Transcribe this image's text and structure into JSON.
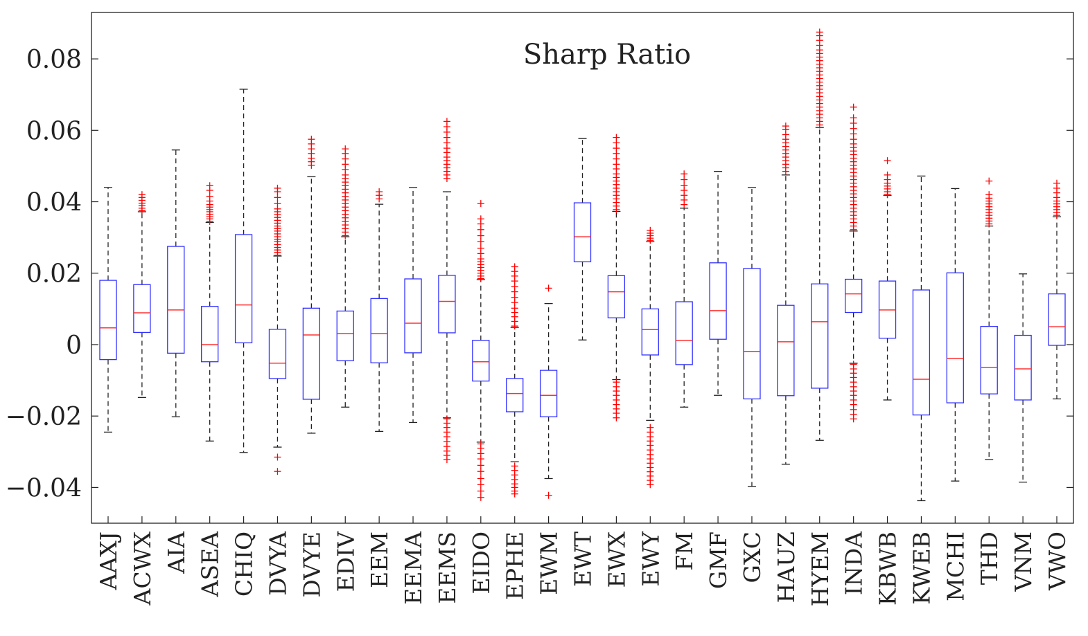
{
  "chart_data": {
    "type": "box",
    "title": "Sharp Ratio",
    "xlabel": "",
    "ylabel": "",
    "ylim": [
      -0.05,
      0.093
    ],
    "yticks": [
      -0.04,
      -0.02,
      0,
      0.02,
      0.04,
      0.06,
      0.08
    ],
    "ytick_labels": [
      "−0.04",
      "−0.02",
      "0",
      "0.02",
      "0.04",
      "0.06",
      "0.08"
    ],
    "colors": {
      "box": "#3030ff",
      "median": "#ff3030",
      "whisker": "#222222",
      "outlier": "#ff0000"
    },
    "categories": [
      "AAXJ",
      "ACWX",
      "AIA",
      "ASEA",
      "CHIQ",
      "DVYA",
      "DVYE",
      "EDIV",
      "EEM",
      "EEMA",
      "EEMS",
      "EIDO",
      "EPHE",
      "EWM",
      "EWT",
      "EWX",
      "EWY",
      "FM",
      "GMF",
      "GXC",
      "HAUZ",
      "HYEM",
      "INDA",
      "KBWB",
      "KWEB",
      "MCHI",
      "THD",
      "VNM",
      "VWO"
    ],
    "boxes": [
      {
        "label": "AAXJ",
        "whisker_low": -0.0245,
        "q1": -0.0042,
        "median": 0.0047,
        "q3": 0.018,
        "whisker_high": 0.044,
        "outliers": []
      },
      {
        "label": "ACWX",
        "whisker_low": -0.0148,
        "q1": 0.0034,
        "median": 0.0089,
        "q3": 0.0168,
        "whisker_high": 0.0372,
        "outliers": [
          0.0375,
          0.0382,
          0.0389,
          0.0396,
          0.0404,
          0.0412,
          0.042
        ]
      },
      {
        "label": "AIA",
        "whisker_low": -0.0202,
        "q1": -0.0024,
        "median": 0.0097,
        "q3": 0.0275,
        "whisker_high": 0.0545,
        "outliers": []
      },
      {
        "label": "ASEA",
        "whisker_low": -0.027,
        "q1": -0.0048,
        "median": 0.0,
        "q3": 0.0107,
        "whisker_high": 0.0342,
        "outliers": [
          0.0345,
          0.0352,
          0.0358,
          0.0365,
          0.0372,
          0.0378,
          0.0385,
          0.0392,
          0.0402,
          0.0415,
          0.0432,
          0.0445
        ]
      },
      {
        "label": "CHIQ",
        "whisker_low": -0.0302,
        "q1": 0.0005,
        "median": 0.0111,
        "q3": 0.0308,
        "whisker_high": 0.0715,
        "outliers": []
      },
      {
        "label": "DVYA",
        "whisker_low": -0.0287,
        "q1": -0.0095,
        "median": -0.0052,
        "q3": 0.0043,
        "whisker_high": 0.0248,
        "outliers": [
          -0.0355,
          -0.0315,
          0.025,
          0.0258,
          0.0265,
          0.0272,
          0.028,
          0.0288,
          0.0295,
          0.0302,
          0.031,
          0.0318,
          0.0325,
          0.0332,
          0.034,
          0.0348,
          0.0356,
          0.0364,
          0.0372,
          0.038,
          0.0395,
          0.0412,
          0.0428,
          0.0438
        ]
      },
      {
        "label": "DVYE",
        "whisker_low": -0.0248,
        "q1": -0.0153,
        "median": 0.0027,
        "q3": 0.0102,
        "whisker_high": 0.047,
        "outliers": [
          0.0502,
          0.0512,
          0.0522,
          0.0535,
          0.0548,
          0.0562,
          0.0575
        ]
      },
      {
        "label": "EDIV",
        "whisker_low": -0.0175,
        "q1": -0.0045,
        "median": 0.0031,
        "q3": 0.0094,
        "whisker_high": 0.0302,
        "outliers": [
          0.0305,
          0.0315,
          0.0325,
          0.0335,
          0.0345,
          0.0355,
          0.0365,
          0.0375,
          0.0385,
          0.0395,
          0.0405,
          0.0415,
          0.0425,
          0.0435,
          0.0445,
          0.0455,
          0.0465,
          0.0475,
          0.049,
          0.0505,
          0.052,
          0.0535,
          0.0548
        ]
      },
      {
        "label": "EEM",
        "whisker_low": -0.0243,
        "q1": -0.0051,
        "median": 0.0031,
        "q3": 0.0129,
        "whisker_high": 0.0393,
        "outliers": [
          0.0408,
          0.0418,
          0.0428
        ]
      },
      {
        "label": "EEMA",
        "whisker_low": -0.0218,
        "q1": -0.0023,
        "median": 0.006,
        "q3": 0.0184,
        "whisker_high": 0.044,
        "outliers": []
      },
      {
        "label": "EEMS",
        "whisker_low": -0.0205,
        "q1": 0.0033,
        "median": 0.0121,
        "q3": 0.0194,
        "whisker_high": 0.0428,
        "outliers": [
          -0.0322,
          -0.031,
          -0.0298,
          -0.0285,
          -0.0272,
          -0.0258,
          -0.0245,
          -0.0232,
          -0.022,
          -0.0208,
          0.0465,
          0.0475,
          0.0485,
          0.0495,
          0.0505,
          0.0515,
          0.0525,
          0.0538,
          0.055,
          0.0565,
          0.058,
          0.0595,
          0.061,
          0.0625
        ]
      },
      {
        "label": "EIDO",
        "whisker_low": -0.0273,
        "q1": -0.0102,
        "median": -0.0048,
        "q3": 0.0012,
        "whisker_high": 0.0182,
        "outliers": [
          -0.0428,
          -0.041,
          -0.0392,
          -0.0375,
          -0.0355,
          -0.0338,
          -0.032,
          -0.0305,
          -0.029,
          -0.0278,
          0.0185,
          0.0192,
          0.02,
          0.0208,
          0.0216,
          0.0224,
          0.0232,
          0.024,
          0.0255,
          0.027,
          0.0288,
          0.0305,
          0.0322,
          0.0338,
          0.0352,
          0.0395
        ]
      },
      {
        "label": "EPHE",
        "whisker_low": -0.0328,
        "q1": -0.0188,
        "median": -0.0137,
        "q3": -0.0095,
        "whisker_high": 0.0048,
        "outliers": [
          -0.0418,
          -0.041,
          -0.04,
          -0.039,
          -0.0378,
          -0.0365,
          -0.0352,
          -0.034,
          0.0052,
          0.0065,
          0.0078,
          0.009,
          0.0102,
          0.0118,
          0.0132,
          0.0148,
          0.0162,
          0.0178,
          0.0192,
          0.0205,
          0.0218
        ]
      },
      {
        "label": "EWM",
        "whisker_low": -0.0375,
        "q1": -0.0202,
        "median": -0.0142,
        "q3": -0.0072,
        "whisker_high": 0.0115,
        "outliers": [
          -0.0422,
          0.0158
        ]
      },
      {
        "label": "EWT",
        "whisker_low": 0.0013,
        "q1": 0.0232,
        "median": 0.0302,
        "q3": 0.0397,
        "whisker_high": 0.0577,
        "outliers": []
      },
      {
        "label": "EWX",
        "whisker_low": -0.0098,
        "q1": 0.0075,
        "median": 0.0148,
        "q3": 0.0193,
        "whisker_high": 0.0373,
        "outliers": [
          -0.0205,
          -0.0192,
          -0.018,
          -0.0168,
          -0.0155,
          -0.0142,
          -0.013,
          -0.0118,
          -0.0105,
          0.0378,
          0.0388,
          0.0398,
          0.0408,
          0.0418,
          0.0428,
          0.0438,
          0.0448,
          0.0458,
          0.0468,
          0.0478,
          0.0492,
          0.0505,
          0.052,
          0.0535,
          0.055,
          0.0565,
          0.058
        ]
      },
      {
        "label": "EWY",
        "whisker_low": -0.0212,
        "q1": -0.0029,
        "median": 0.0042,
        "q3": 0.01,
        "whisker_high": 0.0288,
        "outliers": [
          -0.0392,
          -0.038,
          -0.0368,
          -0.0356,
          -0.0344,
          -0.0332,
          -0.032,
          -0.0308,
          -0.0295,
          -0.0282,
          -0.027,
          -0.0258,
          -0.0245,
          -0.0232,
          0.0292,
          0.0298,
          0.0305,
          0.0312,
          0.032
        ]
      },
      {
        "label": "FM",
        "whisker_low": -0.0175,
        "q1": -0.0056,
        "median": 0.0012,
        "q3": 0.012,
        "whisker_high": 0.0382,
        "outliers": [
          0.0392,
          0.0405,
          0.0418,
          0.0432,
          0.0445,
          0.0462,
          0.0478
        ]
      },
      {
        "label": "GMF",
        "whisker_low": -0.0142,
        "q1": 0.0015,
        "median": 0.0095,
        "q3": 0.0229,
        "whisker_high": 0.0485,
        "outliers": []
      },
      {
        "label": "GXC",
        "whisker_low": -0.0397,
        "q1": -0.0152,
        "median": -0.0019,
        "q3": 0.0213,
        "whisker_high": 0.044,
        "outliers": []
      },
      {
        "label": "HAUZ",
        "whisker_low": -0.0335,
        "q1": -0.0143,
        "median": 0.0008,
        "q3": 0.011,
        "whisker_high": 0.0475,
        "outliers": [
          0.0485,
          0.0495,
          0.0505,
          0.0515,
          0.0525,
          0.0535,
          0.0545,
          0.0555,
          0.0565,
          0.0575,
          0.0588,
          0.0602,
          0.0612
        ]
      },
      {
        "label": "HYEM",
        "whisker_low": -0.0268,
        "q1": -0.0122,
        "median": 0.0064,
        "q3": 0.017,
        "whisker_high": 0.0608,
        "outliers": [
          0.0615,
          0.0625,
          0.0635,
          0.0645,
          0.0655,
          0.0665,
          0.0675,
          0.0685,
          0.0695,
          0.0705,
          0.0715,
          0.0725,
          0.0735,
          0.0745,
          0.0755,
          0.0765,
          0.0775,
          0.0785,
          0.0795,
          0.0805,
          0.0815,
          0.0825,
          0.0838,
          0.0852,
          0.0865,
          0.0875
        ]
      },
      {
        "label": "INDA",
        "whisker_low": -0.0052,
        "q1": 0.009,
        "median": 0.0142,
        "q3": 0.0183,
        "whisker_high": 0.0318,
        "outliers": [
          -0.0208,
          -0.0195,
          -0.0182,
          -0.0168,
          -0.0155,
          -0.0142,
          -0.013,
          -0.0118,
          -0.0105,
          -0.0092,
          -0.008,
          -0.0068,
          -0.0055,
          0.0322,
          0.0332,
          0.0342,
          0.0352,
          0.0362,
          0.0372,
          0.0382,
          0.0392,
          0.0402,
          0.0412,
          0.0422,
          0.0432,
          0.0442,
          0.0452,
          0.0462,
          0.0472,
          0.0482,
          0.0492,
          0.0502,
          0.0512,
          0.0522,
          0.0532,
          0.0542,
          0.0552,
          0.0562,
          0.0575,
          0.059,
          0.0605,
          0.062,
          0.0635,
          0.0665
        ]
      },
      {
        "label": "KBWB",
        "whisker_low": -0.0155,
        "q1": 0.0018,
        "median": 0.0097,
        "q3": 0.0178,
        "whisker_high": 0.0418,
        "outliers": [
          0.042,
          0.0428,
          0.0436,
          0.0444,
          0.0452,
          0.0462,
          0.0475,
          0.0515
        ]
      },
      {
        "label": "KWEB",
        "whisker_low": -0.0437,
        "q1": -0.0197,
        "median": -0.0097,
        "q3": 0.0153,
        "whisker_high": 0.0472,
        "outliers": []
      },
      {
        "label": "MCHI",
        "whisker_low": -0.0382,
        "q1": -0.0163,
        "median": -0.0039,
        "q3": 0.0201,
        "whisker_high": 0.0437,
        "outliers": []
      },
      {
        "label": "THD",
        "whisker_low": -0.0322,
        "q1": -0.0138,
        "median": -0.0064,
        "q3": 0.0051,
        "whisker_high": 0.0332,
        "outliers": [
          0.0338,
          0.0346,
          0.0354,
          0.0362,
          0.037,
          0.0378,
          0.0386,
          0.0394,
          0.0402,
          0.041,
          0.042,
          0.0458
        ]
      },
      {
        "label": "VNM",
        "whisker_low": -0.0385,
        "q1": -0.0155,
        "median": -0.0068,
        "q3": 0.0026,
        "whisker_high": 0.0198,
        "outliers": []
      },
      {
        "label": "VWO",
        "whisker_low": -0.0152,
        "q1": -0.0002,
        "median": 0.005,
        "q3": 0.0142,
        "whisker_high": 0.0358,
        "outliers": [
          0.0362,
          0.037,
          0.0378,
          0.0386,
          0.0394,
          0.0402,
          0.0412,
          0.0425,
          0.0438,
          0.0452
        ]
      }
    ]
  }
}
